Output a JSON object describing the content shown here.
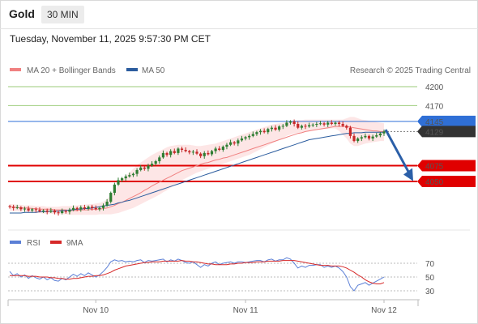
{
  "header": {
    "title": "Gold",
    "interval": "30 MIN",
    "datetime": "Tuesday, November 11, 2025 9:57:30 PM CET"
  },
  "legend": {
    "ma20": "MA 20 + Bollinger Bands",
    "ma50": "MA 50",
    "credit": "Research © 2025 Trading Central",
    "rsi": "RSI",
    "rsi_ma": "9MA"
  },
  "colors": {
    "bull": "#2e7d32",
    "bear": "#c62828",
    "ma20": "#f08080",
    "ma50": "#2b5c9e",
    "band_fill": "#fde3e3",
    "level_green": "#9bcb7a",
    "level_blue": "#2f6fd6",
    "level_red": "#e00000",
    "current": "#333333",
    "rsi_line": "#5b7fd6",
    "rsi_ma_line": "#d62828"
  },
  "chart_data": {
    "type": "candlestick",
    "title": "Gold",
    "interval": "30 MIN",
    "x_ticks": [
      "Nov 10",
      "Nov 11",
      "Nov 12"
    ],
    "y_range": [
      4010,
      4215
    ],
    "current_price": 4129,
    "levels": [
      {
        "value": 4200,
        "label": "4200",
        "style": "green-line"
      },
      {
        "value": 4170,
        "label": "4170",
        "style": "green-line"
      },
      {
        "value": 4145,
        "label": "4145",
        "style": "blue-tag"
      },
      {
        "value": 4075,
        "label": "4075",
        "style": "red-tag"
      },
      {
        "value": 4050,
        "label": "4050",
        "style": "red-tag"
      }
    ],
    "forecast_arrow": {
      "from": 4132,
      "to": 4048,
      "direction": "down"
    },
    "close": [
      4010,
      4008,
      4009,
      4006,
      4007,
      4004,
      4006,
      4005,
      4003,
      4004,
      4002,
      4004,
      4001,
      4000,
      4003,
      4002,
      4005,
      4008,
      4006,
      4009,
      4007,
      4010,
      4008,
      4006,
      4008,
      4012,
      4018,
      4032,
      4045,
      4052,
      4055,
      4058,
      4060,
      4062,
      4068,
      4072,
      4070,
      4075,
      4078,
      4082,
      4088,
      4095,
      4092,
      4098,
      4095,
      4102,
      4100,
      4098,
      4096,
      4097,
      4094,
      4090,
      4095,
      4093,
      4098,
      4102,
      4100,
      4105,
      4108,
      4112,
      4110,
      4115,
      4118,
      4120,
      4122,
      4125,
      4128,
      4130,
      4128,
      4133,
      4135,
      4132,
      4137,
      4138,
      4143,
      4145,
      4141,
      4135,
      4138,
      4137,
      4139,
      4140,
      4141,
      4142,
      4140,
      4143,
      4141,
      4143,
      4141,
      4138,
      4135,
      4122,
      4114,
      4118,
      4120,
      4122,
      4118,
      4121,
      4123,
      4126,
      4129
    ],
    "ma20": [
      4010,
      4009,
      4009,
      4008,
      4008,
      4008,
      4007,
      4007,
      4006,
      4006,
      4006,
      4006,
      4005,
      4005,
      4005,
      4005,
      4004,
      4004,
      4004,
      4005,
      4005,
      4005,
      4006,
      4006,
      4006,
      4007,
      4008,
      4010,
      4012,
      4015,
      4017,
      4020,
      4023,
      4026,
      4029,
      4032,
      4036,
      4039,
      4043,
      4046,
      4049,
      4052,
      4055,
      4058,
      4061,
      4064,
      4067,
      4069,
      4071,
      4073,
      4075,
      4077,
      4079,
      4080,
      4082,
      4084,
      4085,
      4087,
      4088,
      4090,
      4092,
      4094,
      4096,
      4098,
      4100,
      4102,
      4104,
      4106,
      4108,
      4110,
      4112,
      4114,
      4116,
      4118,
      4120,
      4122,
      4124,
      4126,
      4127,
      4129,
      4130,
      4131,
      4132,
      4133,
      4134,
      4135,
      4136,
      4137,
      4137,
      4137,
      4137,
      4136,
      4135,
      4134,
      4133,
      4132,
      4131,
      4130,
      4130,
      4129,
      4129
    ],
    "bb_upper": [
      4014,
      4014,
      4013,
      4013,
      4012,
      4012,
      4012,
      4011,
      4011,
      4011,
      4010,
      4010,
      4010,
      4010,
      4011,
      4011,
      4011,
      4012,
      4012,
      4013,
      4013,
      4014,
      4014,
      4015,
      4016,
      4018,
      4022,
      4028,
      4036,
      4044,
      4052,
      4058,
      4064,
      4070,
      4076,
      4080,
      4084,
      4088,
      4092,
      4095,
      4098,
      4101,
      4104,
      4106,
      4107,
      4108,
      4108,
      4108,
      4108,
      4107,
      4106,
      4106,
      4107,
      4108,
      4109,
      4110,
      4112,
      4114,
      4116,
      4118,
      4120,
      4122,
      4124,
      4126,
      4128,
      4130,
      4132,
      4134,
      4136,
      4138,
      4140,
      4141,
      4142,
      4143,
      4144,
      4145,
      4146,
      4147,
      4147,
      4148,
      4148,
      4148,
      4148,
      4148,
      4148,
      4148,
      4148,
      4148,
      4148,
      4148,
      4150,
      4152,
      4152,
      4150,
      4148,
      4147,
      4146,
      4145,
      4144,
      4143,
      4142
    ],
    "bb_lower": [
      4004,
      4003,
      4003,
      4002,
      4002,
      4001,
      4001,
      4000,
      4000,
      3999,
      3999,
      3999,
      3998,
      3998,
      3998,
      3998,
      3997,
      3997,
      3997,
      3997,
      3997,
      3997,
      3997,
      3997,
      3998,
      3998,
      3998,
      3998,
      3999,
      4000,
      4002,
      4004,
      4006,
      4008,
      4011,
      4014,
      4017,
      4020,
      4023,
      4026,
      4029,
      4033,
      4036,
      4040,
      4044,
      4048,
      4052,
      4055,
      4058,
      4061,
      4064,
      4066,
      4068,
      4070,
      4072,
      4074,
      4076,
      4078,
      4080,
      4082,
      4084,
      4086,
      4088,
      4090,
      4092,
      4095,
      4098,
      4101,
      4104,
      4107,
      4110,
      4113,
      4116,
      4119,
      4122,
      4124,
      4126,
      4127,
      4128,
      4129,
      4130,
      4131,
      4132,
      4132,
      4133,
      4133,
      4134,
      4134,
      4130,
      4124,
      4118,
      4110,
      4106,
      4106,
      4108,
      4110,
      4111,
      4112,
      4113,
      4114,
      4114
    ],
    "ma50": [
      4000,
      4000,
      4000,
      4000,
      4001,
      4001,
      4001,
      4001,
      4002,
      4002,
      4002,
      4003,
      4003,
      4003,
      4004,
      4004,
      4005,
      4005,
      4006,
      4006,
      4007,
      4007,
      4008,
      4009,
      4010,
      4011,
      4012,
      4013,
      4014,
      4016,
      4017,
      4019,
      4020,
      4022,
      4024,
      4026,
      4028,
      4030,
      4032,
      4034,
      4036,
      4038,
      4040,
      4042,
      4044,
      4046,
      4048,
      4050,
      4052,
      4054,
      4056,
      4058,
      4060,
      4062,
      4064,
      4066,
      4068,
      4070,
      4072,
      4074,
      4076,
      4078,
      4080,
      4082,
      4084,
      4086,
      4088,
      4090,
      4092,
      4094,
      4096,
      4098,
      4100,
      4102,
      4104,
      4106,
      4108,
      4110,
      4112,
      4114,
      4116,
      4117,
      4118,
      4119,
      4120,
      4121,
      4122,
      4123,
      4124,
      4125,
      4126,
      4126,
      4127,
      4127,
      4127,
      4128,
      4128,
      4128,
      4128,
      4128,
      4128
    ],
    "rsi": {
      "levels": [
        70,
        50,
        30
      ],
      "y_range": [
        20,
        80
      ],
      "rsi": [
        58,
        52,
        55,
        50,
        53,
        48,
        52,
        49,
        47,
        50,
        46,
        49,
        45,
        44,
        48,
        46,
        50,
        54,
        51,
        55,
        52,
        56,
        53,
        50,
        53,
        58,
        64,
        72,
        75,
        73,
        74,
        72,
        73,
        72,
        74,
        75,
        71,
        74,
        73,
        74,
        75,
        76,
        72,
        75,
        73,
        76,
        74,
        71,
        70,
        72,
        68,
        64,
        68,
        66,
        70,
        72,
        68,
        70,
        71,
        72,
        70,
        72,
        72,
        71,
        72,
        73,
        74,
        74,
        72,
        75,
        76,
        73,
        75,
        75,
        78,
        76,
        70,
        63,
        66,
        64,
        67,
        67,
        68,
        68,
        64,
        66,
        64,
        66,
        63,
        58,
        50,
        36,
        30,
        38,
        40,
        42,
        38,
        41,
        44,
        47,
        50
      ],
      "ma": [
        52,
        52,
        52,
        52,
        52,
        51,
        51,
        51,
        50,
        50,
        50,
        49,
        49,
        48,
        48,
        47,
        47,
        48,
        48,
        49,
        50,
        51,
        51,
        52,
        52,
        53,
        55,
        57,
        60,
        62,
        64,
        66,
        67,
        68,
        69,
        70,
        71,
        71,
        72,
        72,
        72,
        73,
        73,
        73,
        73,
        73,
        74,
        73,
        73,
        72,
        72,
        71,
        70,
        69,
        69,
        68,
        68,
        68,
        68,
        69,
        69,
        70,
        70,
        71,
        71,
        71,
        72,
        72,
        72,
        73,
        73,
        73,
        73,
        74,
        74,
        74,
        74,
        73,
        72,
        71,
        70,
        69,
        68,
        67,
        67,
        67,
        66,
        66,
        66,
        65,
        63,
        60,
        57,
        53,
        50,
        46,
        43,
        41,
        40,
        40,
        42
      ]
    }
  }
}
